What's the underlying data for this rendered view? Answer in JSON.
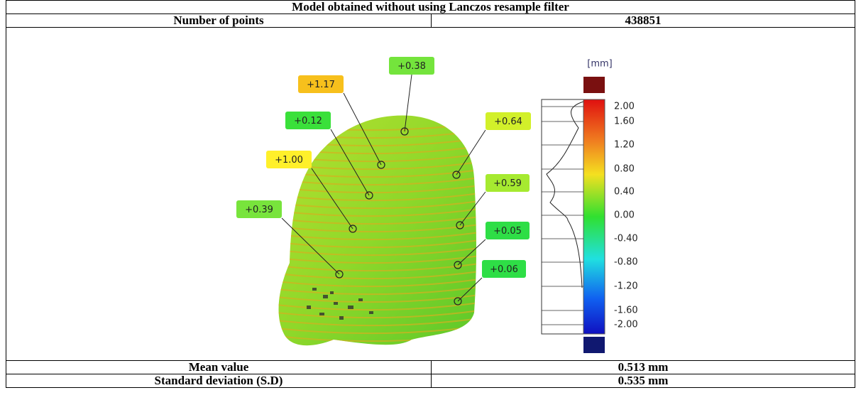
{
  "table": {
    "title": "Model obtained without using Lanczos resample filter",
    "rows": [
      [
        "Number of points",
        "438851"
      ],
      [
        "Mean value",
        "0.513 mm"
      ],
      [
        "Standard deviation (S.D)",
        "0.535 mm"
      ]
    ]
  },
  "figure": {
    "callouts": [
      {
        "label": "+0.38",
        "color": "#74e43c"
      },
      {
        "label": "+1.17",
        "color": "#f7c01c"
      },
      {
        "label": "+0.12",
        "color": "#3ae03a"
      },
      {
        "label": "+1.00",
        "color": "#fff02a"
      },
      {
        "label": "+0.39",
        "color": "#78e43c"
      },
      {
        "label": "+0.64",
        "color": "#d2f02a"
      },
      {
        "label": "+0.59",
        "color": "#a6ea30"
      },
      {
        "label": "+0.05",
        "color": "#2ede46"
      },
      {
        "label": "+0.06",
        "color": "#2ede46"
      }
    ],
    "scale": {
      "unit": "[mm]",
      "ticks": [
        "2.00",
        "1.60",
        "1.20",
        "0.80",
        "0.40",
        "0.00",
        "-0.40",
        "-0.80",
        "-1.20",
        "-1.60",
        "-2.00"
      ]
    }
  }
}
